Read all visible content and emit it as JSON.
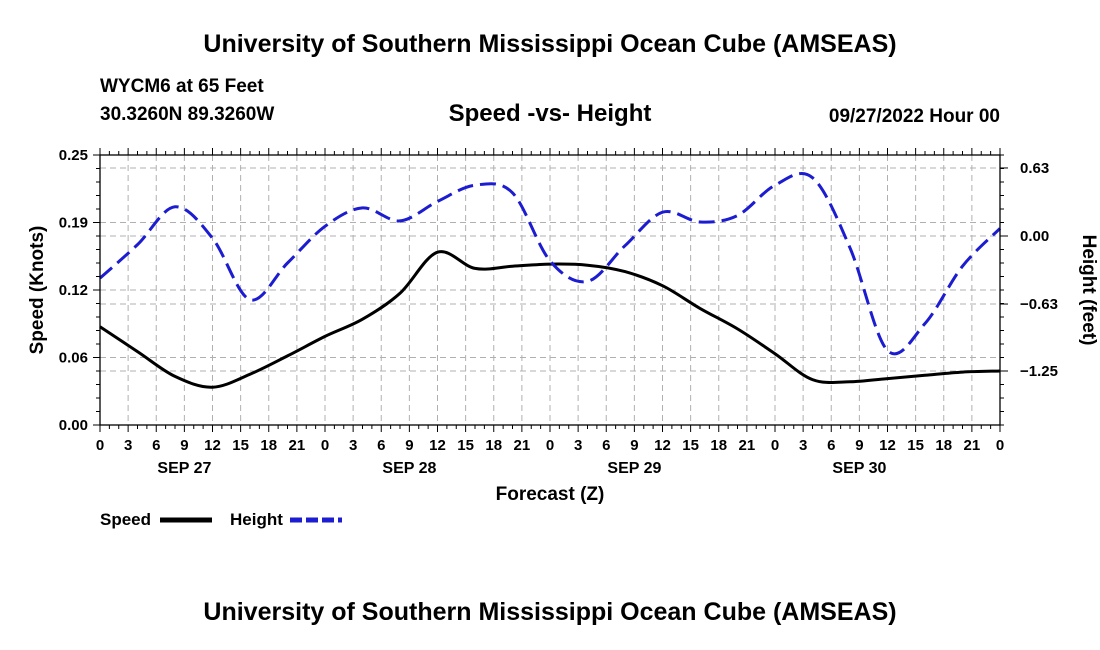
{
  "header": {
    "title": "University of Southern Mississippi Ocean Cube (AMSEAS)",
    "station": "WYCM6 at 65 Feet",
    "coordinates": "30.3260N  89.3260W",
    "date_hour": "09/27/2022 Hour 00"
  },
  "footer": {
    "title": "University of Southern Mississippi Ocean Cube (AMSEAS)"
  },
  "chart_data": {
    "type": "line",
    "title": "Speed -vs- Height",
    "xlabel": "Forecast (Z)",
    "ylabel_left": "Speed (Knots)",
    "ylabel_right": "Height (feet)",
    "x_unit": "forecast hour",
    "xlim": [
      0,
      96
    ],
    "ylim_left": [
      0,
      0.25
    ],
    "ylim_right": [
      -1.75,
      0.75
    ],
    "x_tick_values": [
      0,
      3,
      6,
      9,
      12,
      15,
      18,
      21,
      24,
      27,
      30,
      33,
      36,
      39,
      42,
      45,
      48,
      51,
      54,
      57,
      60,
      63,
      66,
      69,
      72,
      75,
      78,
      81,
      84,
      87,
      90,
      93,
      96
    ],
    "x_tick_labels": [
      "0",
      "3",
      "6",
      "9",
      "12",
      "15",
      "18",
      "21",
      "0",
      "3",
      "6",
      "9",
      "12",
      "15",
      "18",
      "21",
      "0",
      "3",
      "6",
      "9",
      "12",
      "15",
      "18",
      "21",
      "0",
      "3",
      "6",
      "9",
      "12",
      "15",
      "18",
      "21",
      "0"
    ],
    "day_labels": [
      {
        "label": "SEP 27",
        "at": 9
      },
      {
        "label": "SEP 28",
        "at": 33
      },
      {
        "label": "SEP 29",
        "at": 57
      },
      {
        "label": "SEP 30",
        "at": 81
      }
    ],
    "y_left_ticks": [
      0,
      0.0625,
      0.125,
      0.1875,
      0.25
    ],
    "y_left_tick_labels": [
      "0.00",
      "0.06",
      "0.12",
      "0.19",
      "0.25"
    ],
    "y_right_ticks": [
      -1.25,
      -0.63,
      0,
      0.63
    ],
    "y_right_tick_labels": [
      "−1.25",
      "−0.63",
      "0.00",
      "0.63"
    ],
    "grid": true,
    "legend_position": "bottom-left",
    "series": [
      {
        "name": "Speed",
        "axis": "left",
        "color": "#000000",
        "style": "solid",
        "points": [
          [
            0,
            0.091
          ],
          [
            3,
            0.068
          ],
          [
            6,
            0.045
          ],
          [
            9,
            0.035
          ],
          [
            12,
            0.047
          ],
          [
            15,
            0.064
          ],
          [
            18,
            0.082
          ],
          [
            21,
            0.098
          ],
          [
            24,
            0.122
          ],
          [
            27,
            0.16
          ],
          [
            30,
            0.145
          ],
          [
            33,
            0.147
          ],
          [
            36,
            0.149
          ],
          [
            39,
            0.148
          ],
          [
            42,
            0.142
          ],
          [
            45,
            0.129
          ],
          [
            48,
            0.108
          ],
          [
            51,
            0.089
          ],
          [
            54,
            0.066
          ],
          [
            57,
            0.042
          ],
          [
            60,
            0.04
          ],
          [
            63,
            0.043
          ],
          [
            66,
            0.046
          ],
          [
            69,
            0.049
          ],
          [
            72,
            0.05
          ]
        ]
      },
      {
        "name": "Height",
        "axis": "right",
        "color": "#1c1cd0",
        "style": "dashed",
        "points": [
          [
            0,
            -0.39
          ],
          [
            3,
            -0.08
          ],
          [
            6,
            0.27
          ],
          [
            9,
            -0.02
          ],
          [
            12,
            -0.59
          ],
          [
            15,
            -0.25
          ],
          [
            18,
            0.09
          ],
          [
            21,
            0.26
          ],
          [
            24,
            0.14
          ],
          [
            27,
            0.32
          ],
          [
            30,
            0.47
          ],
          [
            33,
            0.4
          ],
          [
            36,
            -0.23
          ],
          [
            39,
            -0.42
          ],
          [
            42,
            -0.09
          ],
          [
            45,
            0.22
          ],
          [
            48,
            0.13
          ],
          [
            51,
            0.19
          ],
          [
            54,
            0.47
          ],
          [
            57,
            0.54
          ],
          [
            60,
            -0.11
          ],
          [
            63,
            -1.06
          ],
          [
            66,
            -0.81
          ],
          [
            69,
            -0.28
          ],
          [
            72,
            0.07
          ]
        ]
      }
    ]
  }
}
